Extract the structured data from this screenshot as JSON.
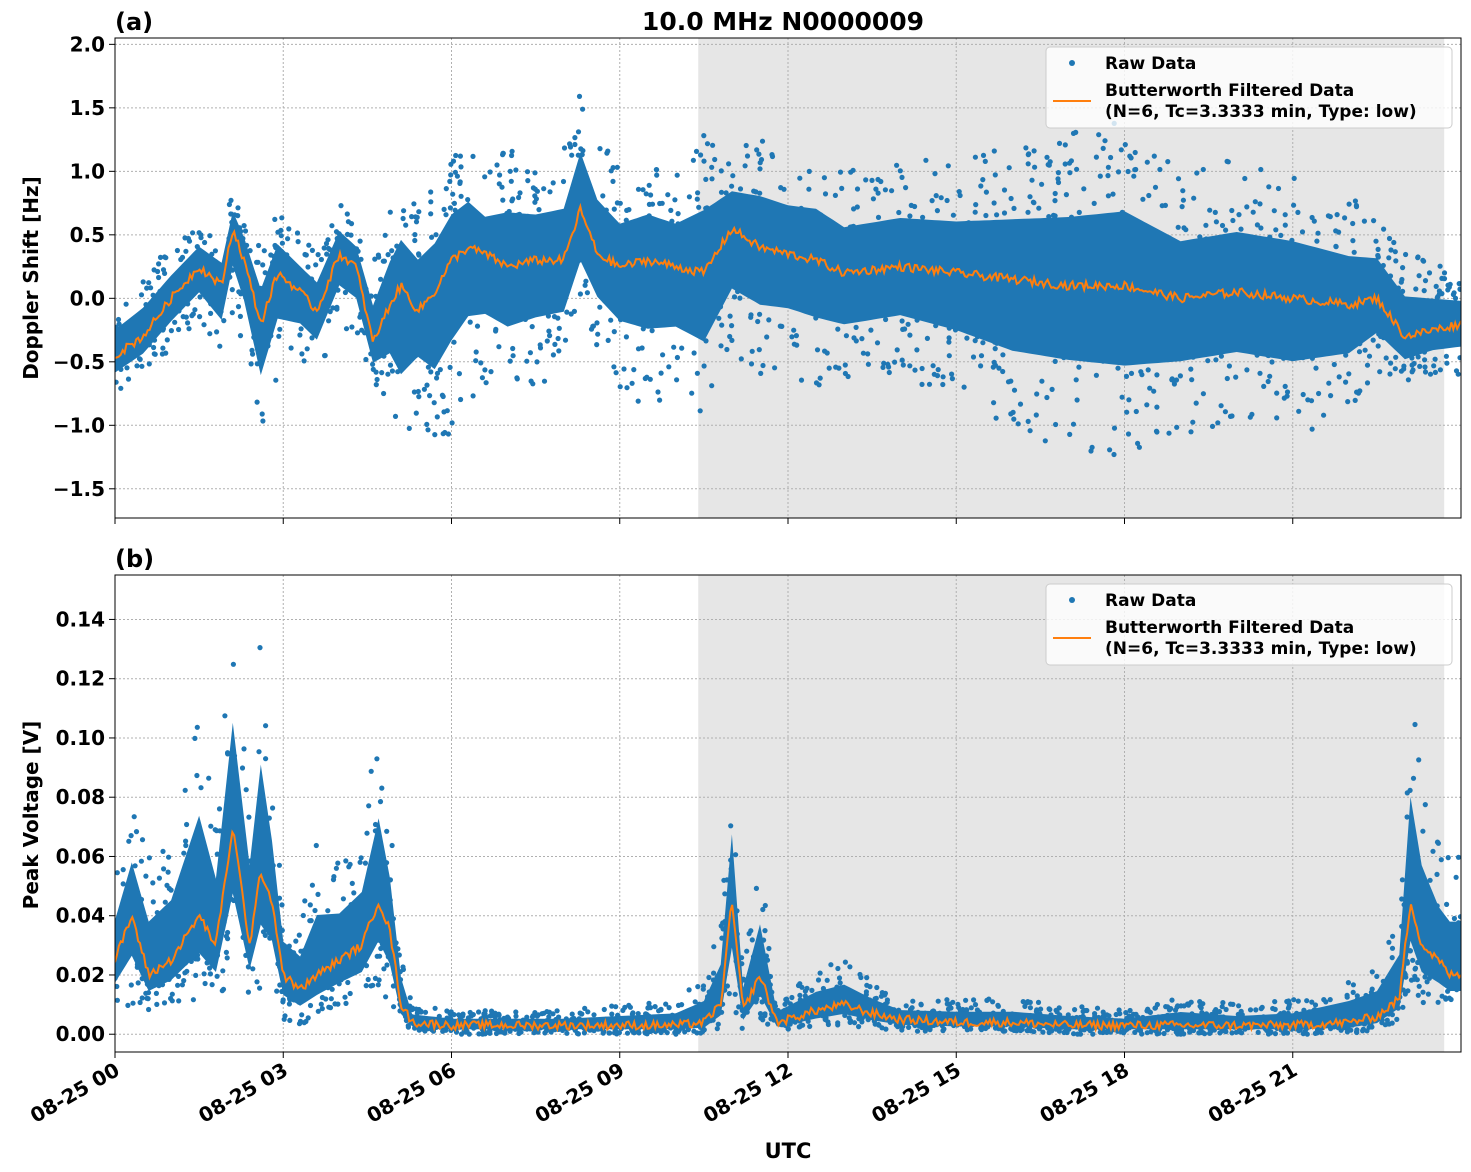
{
  "colors": {
    "raw": "#1f77b4",
    "filtered": "#ff7f0e",
    "shade": "#e6e6e6",
    "grid": "#b0b0b0"
  },
  "shared": {
    "xlabel": "UTC",
    "xlim_hours": [
      0,
      24
    ],
    "xticks": [
      {
        "hour": 0,
        "label": "08-25 00"
      },
      {
        "hour": 3,
        "label": "08-25 03"
      },
      {
        "hour": 6,
        "label": "08-25 06"
      },
      {
        "hour": 9,
        "label": "08-25 09"
      },
      {
        "hour": 12,
        "label": "08-25 12"
      },
      {
        "hour": 15,
        "label": "08-25 15"
      },
      {
        "hour": 18,
        "label": "08-25 18"
      },
      {
        "hour": 21,
        "label": "08-25 21"
      }
    ],
    "shaded_span_hours": [
      10.4,
      23.7
    ],
    "legend_raw": "Raw Data",
    "legend_filtered_line1": "Butterworth Filtered Data",
    "legend_filtered_line2": "(N=6, Tc=3.3333 min, Type: low)",
    "legend_position": "top-right"
  },
  "chart_data": [
    {
      "type": "scatter",
      "panel_label": "(a)",
      "title": "10.0 MHz N0000009",
      "ylabel": "Doppler Shift [Hz]",
      "ylim": [
        -1.73,
        2.05
      ],
      "yticks": [
        {
          "v": -1.5,
          "label": "−1.5"
        },
        {
          "v": -1.0,
          "label": "−1.0"
        },
        {
          "v": -0.5,
          "label": "−0.5"
        },
        {
          "v": 0.0,
          "label": "0.0"
        },
        {
          "v": 0.5,
          "label": "0.5"
        },
        {
          "v": 1.0,
          "label": "1.0"
        },
        {
          "v": 1.5,
          "label": "1.5"
        },
        {
          "v": 2.0,
          "label": "2.0"
        }
      ],
      "series": [
        {
          "name": "Butterworth Filtered Data",
          "x": [
            0,
            0.5,
            1,
            1.5,
            1.9,
            2.1,
            2.3,
            2.6,
            2.9,
            3.3,
            3.6,
            4,
            4.3,
            4.6,
            4.9,
            5.1,
            5.4,
            5.7,
            6,
            6.3,
            6.6,
            7,
            7.5,
            8,
            8.3,
            8.6,
            9,
            9.5,
            10,
            10.5,
            11,
            11.5,
            12,
            12.5,
            13,
            14,
            15,
            16,
            17,
            18,
            19,
            20,
            21,
            22,
            22.5,
            23,
            23.5,
            24
          ],
          "y": [
            -0.45,
            -0.3,
            0.0,
            0.25,
            0.1,
            0.55,
            0.3,
            -0.2,
            0.2,
            0.05,
            -0.1,
            0.35,
            0.25,
            -0.35,
            -0.05,
            0.1,
            -0.1,
            0.05,
            0.3,
            0.4,
            0.35,
            0.25,
            0.3,
            0.3,
            0.7,
            0.35,
            0.25,
            0.3,
            0.25,
            0.2,
            0.55,
            0.4,
            0.35,
            0.3,
            0.2,
            0.25,
            0.2,
            0.15,
            0.1,
            0.1,
            0.0,
            0.05,
            0.0,
            -0.05,
            0.0,
            -0.3,
            -0.25,
            -0.2
          ]
        },
        {
          "name": "Raw Data",
          "x": [
            0,
            0.5,
            1,
            1.5,
            1.9,
            2.1,
            2.3,
            2.6,
            2.9,
            3.3,
            3.6,
            4,
            4.3,
            4.6,
            4.9,
            5.1,
            5.4,
            5.7,
            6,
            6.3,
            6.6,
            7,
            7.5,
            8,
            8.3,
            8.6,
            9,
            9.5,
            10,
            10.5,
            11,
            11.5,
            12,
            12.5,
            13,
            14,
            15,
            16,
            17,
            18,
            19,
            20,
            21,
            22,
            22.5,
            23,
            23.5,
            24
          ],
          "ymin": [
            -0.75,
            -0.6,
            -0.4,
            -0.2,
            -0.5,
            -0.1,
            -0.4,
            -1.1,
            -0.6,
            -0.5,
            -0.6,
            -0.2,
            -0.3,
            -0.7,
            -0.9,
            -1.45,
            -0.9,
            -1.3,
            -1.1,
            -0.8,
            -0.7,
            -0.8,
            -0.7,
            -0.6,
            -0.2,
            -0.4,
            -0.7,
            -0.9,
            -0.8,
            -1.0,
            -0.5,
            -0.6,
            -0.6,
            -0.7,
            -0.7,
            -0.6,
            -0.8,
            -1.1,
            -1.2,
            -1.3,
            -1.1,
            -1.0,
            -1.1,
            -0.9,
            -0.6,
            -0.7,
            -0.6,
            -0.6
          ],
          "ymax": [
            0.0,
            0.2,
            0.4,
            0.6,
            0.5,
            0.85,
            0.7,
            0.4,
            0.7,
            0.5,
            0.4,
            0.75,
            0.6,
            0.3,
            0.7,
            0.9,
            0.8,
            0.9,
            1.1,
            1.2,
            1.0,
            1.2,
            1.1,
            1.2,
            1.7,
            1.3,
            1.0,
            1.1,
            1.0,
            1.3,
            1.2,
            1.3,
            1.2,
            1.2,
            1.0,
            1.1,
            1.1,
            1.2,
            1.3,
            1.4,
            1.0,
            1.1,
            1.0,
            0.8,
            0.7,
            0.4,
            0.3,
            0.2
          ]
        }
      ]
    },
    {
      "type": "scatter",
      "panel_label": "(b)",
      "title": "",
      "ylabel": "Peak Voltage [V]",
      "ylim": [
        -0.006,
        0.155
      ],
      "yticks": [
        {
          "v": 0.0,
          "label": "0.00"
        },
        {
          "v": 0.02,
          "label": "0.02"
        },
        {
          "v": 0.04,
          "label": "0.04"
        },
        {
          "v": 0.06,
          "label": "0.06"
        },
        {
          "v": 0.08,
          "label": "0.08"
        },
        {
          "v": 0.1,
          "label": "0.10"
        },
        {
          "v": 0.12,
          "label": "0.12"
        },
        {
          "v": 0.14,
          "label": "0.14"
        }
      ],
      "series": [
        {
          "name": "Butterworth Filtered Data",
          "x": [
            0,
            0.3,
            0.6,
            1,
            1.5,
            1.8,
            2.1,
            2.4,
            2.6,
            2.8,
            3,
            3.3,
            3.6,
            4,
            4.4,
            4.7,
            4.9,
            5.1,
            5.3,
            6,
            7,
            8,
            9,
            10,
            10.5,
            10.8,
            11,
            11.2,
            11.5,
            11.8,
            12,
            12.5,
            13,
            13.5,
            14,
            15,
            16,
            17,
            18,
            19,
            20,
            21,
            22,
            22.5,
            22.9,
            23.1,
            23.3,
            23.6,
            23.8,
            24
          ],
          "y": [
            0.025,
            0.04,
            0.02,
            0.025,
            0.04,
            0.03,
            0.07,
            0.03,
            0.055,
            0.045,
            0.02,
            0.015,
            0.02,
            0.025,
            0.03,
            0.045,
            0.035,
            0.01,
            0.004,
            0.003,
            0.003,
            0.003,
            0.003,
            0.003,
            0.004,
            0.01,
            0.045,
            0.008,
            0.02,
            0.004,
            0.005,
            0.008,
            0.01,
            0.007,
            0.005,
            0.004,
            0.004,
            0.003,
            0.003,
            0.003,
            0.003,
            0.003,
            0.004,
            0.006,
            0.012,
            0.045,
            0.03,
            0.025,
            0.02,
            0.02
          ]
        },
        {
          "name": "Raw Data",
          "x": [
            0,
            0.3,
            0.6,
            1,
            1.5,
            1.8,
            2.1,
            2.4,
            2.6,
            2.8,
            3,
            3.3,
            3.6,
            4,
            4.4,
            4.7,
            4.9,
            5.1,
            5.3,
            6,
            7,
            8,
            9,
            10,
            10.5,
            10.8,
            11,
            11.2,
            11.5,
            11.8,
            12,
            12.5,
            13,
            13.5,
            14,
            15,
            16,
            17,
            18,
            19,
            20,
            21,
            22,
            22.5,
            22.9,
            23.1,
            23.3,
            23.6,
            23.8,
            24
          ],
          "ymin": [
            0.008,
            0.01,
            0.008,
            0.01,
            0.012,
            0.01,
            0.02,
            0.012,
            0.015,
            0.015,
            0.005,
            0.003,
            0.005,
            0.008,
            0.01,
            0.015,
            0.01,
            0.003,
            0.001,
            0.0,
            0.0,
            0.0,
            0.0,
            0.0,
            0.0,
            0.002,
            0.01,
            0.001,
            0.005,
            0.001,
            0.001,
            0.002,
            0.003,
            0.002,
            0.001,
            0.001,
            0.001,
            0.0,
            0.0,
            0.0,
            0.0,
            0.0,
            0.0,
            0.001,
            0.005,
            0.015,
            0.01,
            0.008,
            0.008,
            0.008
          ],
          "ymax": [
            0.055,
            0.08,
            0.06,
            0.07,
            0.115,
            0.08,
            0.148,
            0.09,
            0.135,
            0.09,
            0.045,
            0.04,
            0.065,
            0.06,
            0.07,
            0.107,
            0.075,
            0.03,
            0.01,
            0.008,
            0.008,
            0.008,
            0.01,
            0.012,
            0.02,
            0.04,
            0.095,
            0.025,
            0.058,
            0.012,
            0.015,
            0.022,
            0.025,
            0.018,
            0.012,
            0.012,
            0.012,
            0.01,
            0.008,
            0.013,
            0.01,
            0.012,
            0.02,
            0.025,
            0.045,
            0.123,
            0.09,
            0.065,
            0.06,
            0.06
          ]
        }
      ]
    }
  ]
}
